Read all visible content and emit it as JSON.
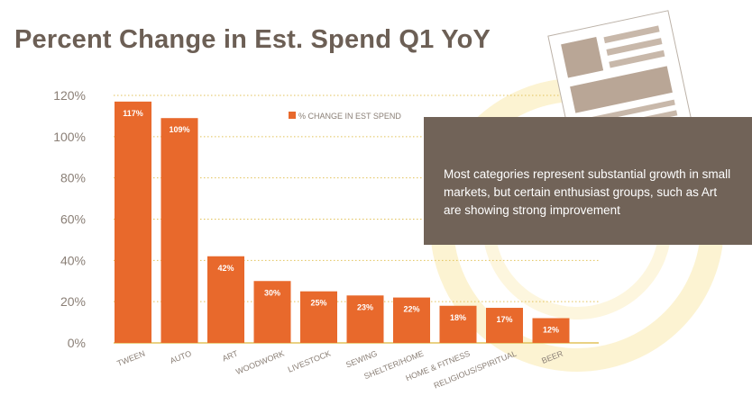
{
  "title": "Percent Change in Est. Spend Q1 YoY",
  "note": "Most categories represent substantial growth in small markets, but certain enthusiast groups, such as Art are showing strong improvement",
  "colors": {
    "bar": "#e8692c",
    "title": "#6c5f55",
    "note_bg": "#716358",
    "grid": "#e2c25a",
    "axis": "#e2c25a",
    "ring": "#fbf1c9"
  },
  "icons": {
    "document": "document-icon"
  },
  "chart_data": {
    "type": "bar",
    "title": "Percent Change in Est. Spend Q1 YoY",
    "xlabel": "",
    "ylabel": "",
    "categories": [
      "TWEEN",
      "AUTO",
      "ART",
      "WOODWORK",
      "LIVESTOCK",
      "SEWING",
      "SHELTER/HOME",
      "HOME & FITNESS",
      "RELIGIOUS/SPIRITUAL",
      "BEER"
    ],
    "series": [
      {
        "name": "% CHANGE IN EST SPEND",
        "values": [
          117,
          109,
          42,
          30,
          25,
          23,
          22,
          18,
          17,
          12
        ]
      }
    ],
    "data_labels": [
      "117%",
      "109%",
      "42%",
      "30%",
      "25%",
      "23%",
      "22%",
      "18%",
      "17%",
      "12%"
    ],
    "ylim": [
      0,
      120
    ],
    "yticks": [
      0,
      20,
      40,
      60,
      80,
      100,
      120
    ],
    "ytick_labels": [
      "0%",
      "20%",
      "40%",
      "60%",
      "80%",
      "100%",
      "120%"
    ],
    "grid": true,
    "legend_position": "top-center"
  }
}
